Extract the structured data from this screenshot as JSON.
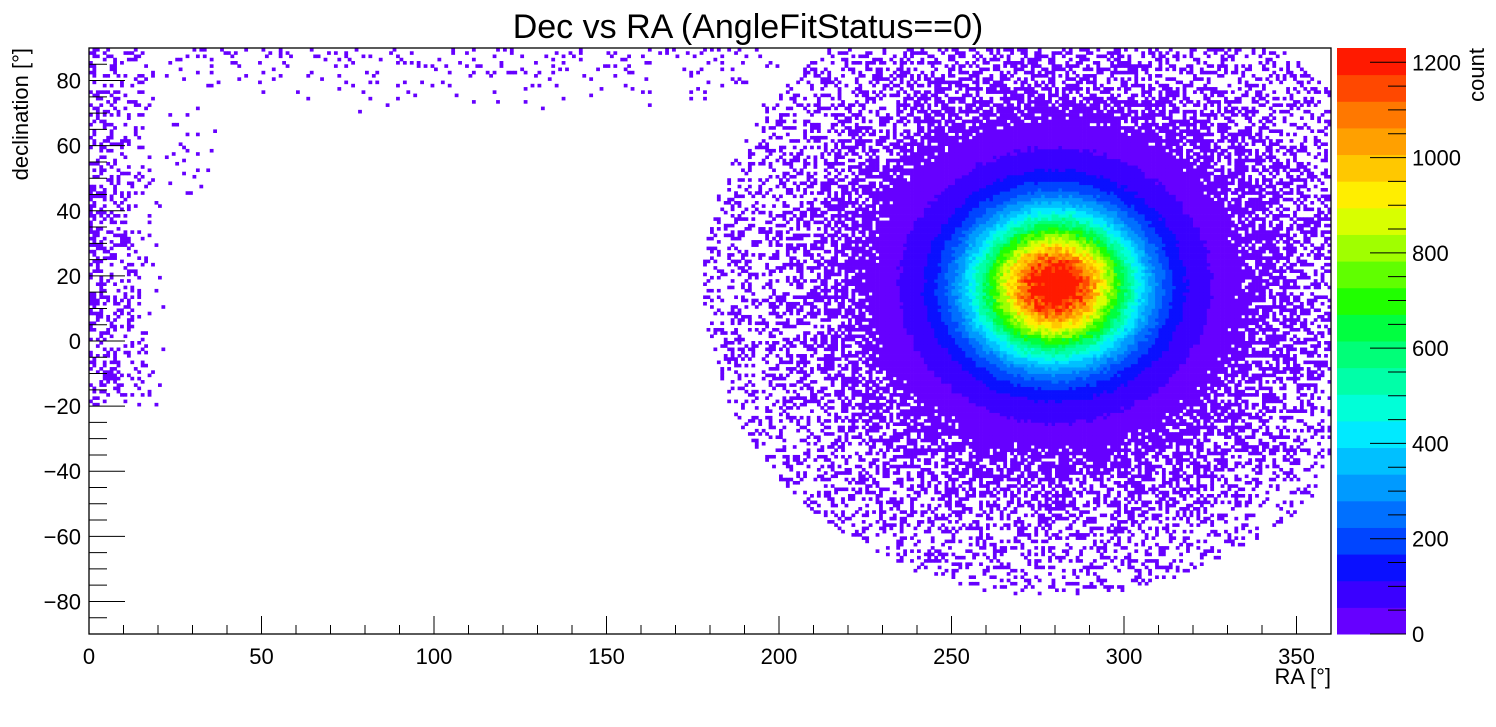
{
  "chart_data": {
    "type": "heatmap",
    "title": "Dec vs RA (AngleFitStatus==0)",
    "xlabel": "RA [°]",
    "ylabel": "declination [°]",
    "zlabel": "count",
    "xlim": [
      0,
      360
    ],
    "ylim": [
      -90,
      90
    ],
    "zlim": [
      0,
      1230
    ],
    "x_ticks": [
      0,
      50,
      100,
      150,
      200,
      250,
      300,
      350
    ],
    "x_tick_labels": [
      "0",
      "50",
      "100",
      "150",
      "200",
      "250",
      "300",
      "350"
    ],
    "y_ticks": [
      -80,
      -60,
      -40,
      -20,
      0,
      20,
      40,
      60,
      80
    ],
    "y_tick_labels": [
      "−80",
      "−60",
      "−40",
      "−20",
      "0",
      "20",
      "40",
      "60",
      "80"
    ],
    "z_ticks": [
      0,
      200,
      400,
      600,
      800,
      1000,
      1200
    ],
    "z_tick_labels": [
      "0",
      "200",
      "400",
      "600",
      "800",
      "1000",
      "1200"
    ],
    "bins": {
      "x": 360,
      "y": 180,
      "x_width_deg": 1,
      "y_width_deg": 1
    },
    "peak": {
      "ra": 280,
      "dec": 17,
      "count": 1230
    },
    "density_model": {
      "core": {
        "ra": 280,
        "dec": 17,
        "sigma_ra": 16,
        "sigma_dec": 15,
        "amplitude": 1230
      },
      "halo_sparse_edge": "sparse single counts extend over RA 0-20 and the RA>200 region up to dec 90 and down to dec -70"
    },
    "palette": [
      "#6600ff",
      "#3a00ff",
      "#0a10ff",
      "#0045ff",
      "#0070ff",
      "#009aff",
      "#00c0ff",
      "#00eaff",
      "#00ffd8",
      "#00ffa8",
      "#00ff78",
      "#00ff40",
      "#20ff00",
      "#60ff00",
      "#a0ff00",
      "#d8ff00",
      "#ffee00",
      "#ffc800",
      "#ffa000",
      "#ff7800",
      "#ff4800",
      "#ff1a00"
    ],
    "grid": false,
    "legend": "colorbar-right"
  }
}
